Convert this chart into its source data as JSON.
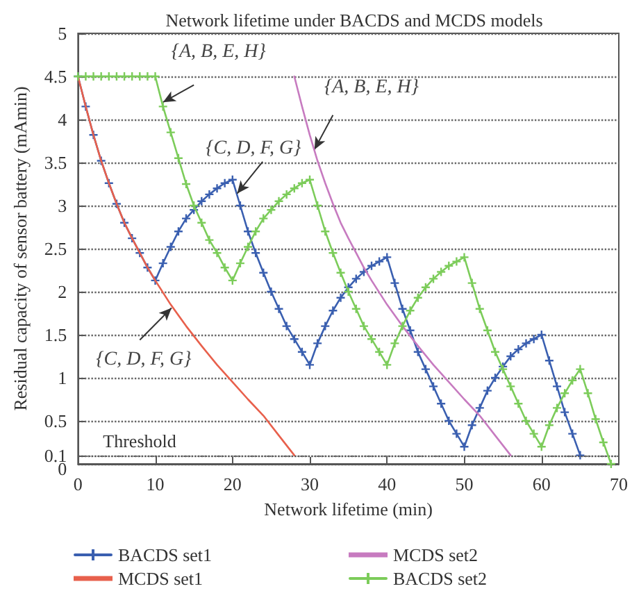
{
  "chart_data": {
    "type": "line",
    "title": "Network lifetime under BACDS and MCDS models",
    "xlabel": "Network lifetime (min)",
    "ylabel": "Residual capacity of sensor battery (mAmin)",
    "xlim": [
      0,
      70
    ],
    "xticks": [
      0,
      10,
      20,
      30,
      40,
      50,
      60,
      70
    ],
    "ylim": [
      0,
      5
    ],
    "yticks": [
      0,
      0.1,
      0.5,
      1,
      1.5,
      2,
      2.5,
      3,
      3.5,
      4,
      4.5,
      5
    ],
    "grid": "y",
    "legend": "bottom",
    "series": [
      {
        "name": "BACDS set1",
        "color": "#3a5fb0",
        "marker": "cross",
        "x": [
          0,
          1,
          2,
          3,
          4,
          5,
          6,
          7,
          8,
          9,
          10,
          11,
          12,
          13,
          14,
          15,
          16,
          17,
          18,
          19,
          20,
          21,
          22,
          23,
          24,
          25,
          26,
          27,
          28,
          29,
          30,
          31,
          32,
          33,
          34,
          35,
          36,
          37,
          38,
          39,
          40,
          41,
          42,
          43,
          44,
          45,
          46,
          47,
          48,
          49,
          50,
          51,
          52,
          53,
          54,
          55,
          56,
          57,
          58,
          59,
          60,
          61,
          62,
          63,
          64,
          65
        ],
        "values": [
          4.5,
          4.15,
          3.82,
          3.52,
          3.26,
          3.02,
          2.8,
          2.62,
          2.45,
          2.28,
          2.13,
          2.33,
          2.52,
          2.7,
          2.85,
          2.95,
          3.05,
          3.13,
          3.2,
          3.26,
          3.3,
          3.0,
          2.7,
          2.45,
          2.22,
          2.0,
          1.8,
          1.6,
          1.45,
          1.3,
          1.15,
          1.4,
          1.6,
          1.78,
          1.93,
          2.05,
          2.15,
          2.23,
          2.3,
          2.35,
          2.4,
          2.1,
          1.8,
          1.55,
          1.3,
          1.1,
          0.9,
          0.7,
          0.5,
          0.35,
          0.2,
          0.45,
          0.65,
          0.85,
          1.0,
          1.13,
          1.25,
          1.33,
          1.4,
          1.45,
          1.5,
          1.2,
          0.9,
          0.6,
          0.35,
          0.1
        ]
      },
      {
        "name": "MCDS set1",
        "color": "#e8604c",
        "marker": "none",
        "x": [
          0,
          1,
          2,
          3,
          4,
          5,
          6,
          7,
          8,
          9,
          10,
          12,
          14,
          16,
          18,
          20,
          22,
          24,
          26,
          28
        ],
        "values": [
          4.5,
          4.15,
          3.82,
          3.52,
          3.26,
          3.02,
          2.8,
          2.62,
          2.45,
          2.28,
          2.13,
          1.85,
          1.6,
          1.37,
          1.15,
          0.95,
          0.75,
          0.56,
          0.33,
          0.1
        ]
      },
      {
        "name": "MCDS set2",
        "color": "#c77bc0",
        "marker": "none",
        "x": [
          28,
          29,
          30,
          31,
          32,
          33,
          34,
          35,
          36,
          37,
          38,
          40,
          42,
          44,
          46,
          48,
          50,
          52,
          54,
          56
        ],
        "values": [
          4.5,
          4.15,
          3.82,
          3.52,
          3.26,
          3.02,
          2.8,
          2.62,
          2.45,
          2.28,
          2.13,
          1.85,
          1.6,
          1.37,
          1.15,
          0.95,
          0.75,
          0.56,
          0.33,
          0.1
        ]
      },
      {
        "name": "BACDS set2",
        "color": "#7ccc5a",
        "marker": "cross",
        "x": [
          0,
          1,
          2,
          3,
          4,
          5,
          6,
          7,
          8,
          9,
          10,
          11,
          12,
          13,
          14,
          15,
          16,
          17,
          18,
          19,
          20,
          21,
          22,
          23,
          24,
          25,
          26,
          27,
          28,
          29,
          30,
          31,
          32,
          33,
          34,
          35,
          36,
          37,
          38,
          39,
          40,
          41,
          42,
          43,
          44,
          45,
          46,
          47,
          48,
          49,
          50,
          51,
          52,
          53,
          54,
          55,
          56,
          57,
          58,
          59,
          60,
          61,
          62,
          63,
          64,
          65,
          66,
          67,
          68,
          69
        ],
        "values": [
          4.5,
          4.5,
          4.5,
          4.5,
          4.5,
          4.5,
          4.5,
          4.5,
          4.5,
          4.5,
          4.5,
          4.15,
          3.85,
          3.55,
          3.25,
          3.0,
          2.8,
          2.6,
          2.45,
          2.28,
          2.13,
          2.33,
          2.52,
          2.7,
          2.85,
          2.95,
          3.05,
          3.13,
          3.2,
          3.26,
          3.3,
          3.0,
          2.7,
          2.45,
          2.22,
          2.0,
          1.8,
          1.6,
          1.45,
          1.3,
          1.15,
          1.4,
          1.6,
          1.78,
          1.93,
          2.05,
          2.15,
          2.23,
          2.3,
          2.35,
          2.4,
          2.1,
          1.8,
          1.55,
          1.3,
          1.1,
          0.9,
          0.7,
          0.5,
          0.35,
          0.2,
          0.45,
          0.65,
          0.82,
          0.97,
          1.1,
          0.82,
          0.52,
          0.25,
          0.0
        ]
      }
    ],
    "ref_lines": [
      {
        "axis": "y",
        "value": 0.1,
        "label": "Threshold",
        "color": "#555555",
        "line_style": "dotted"
      }
    ],
    "annotations": [
      {
        "text": "{A, B, E, H}",
        "x": 11,
        "y": 4.2
      },
      {
        "text": "{A, B, E, H}",
        "x": 30.6,
        "y": 3.65
      },
      {
        "text": "{C, D, F, G}",
        "x": 20.6,
        "y": 3.14
      },
      {
        "text": "{C, D, F, G}",
        "x": 12.1,
        "y": 1.81
      }
    ]
  }
}
